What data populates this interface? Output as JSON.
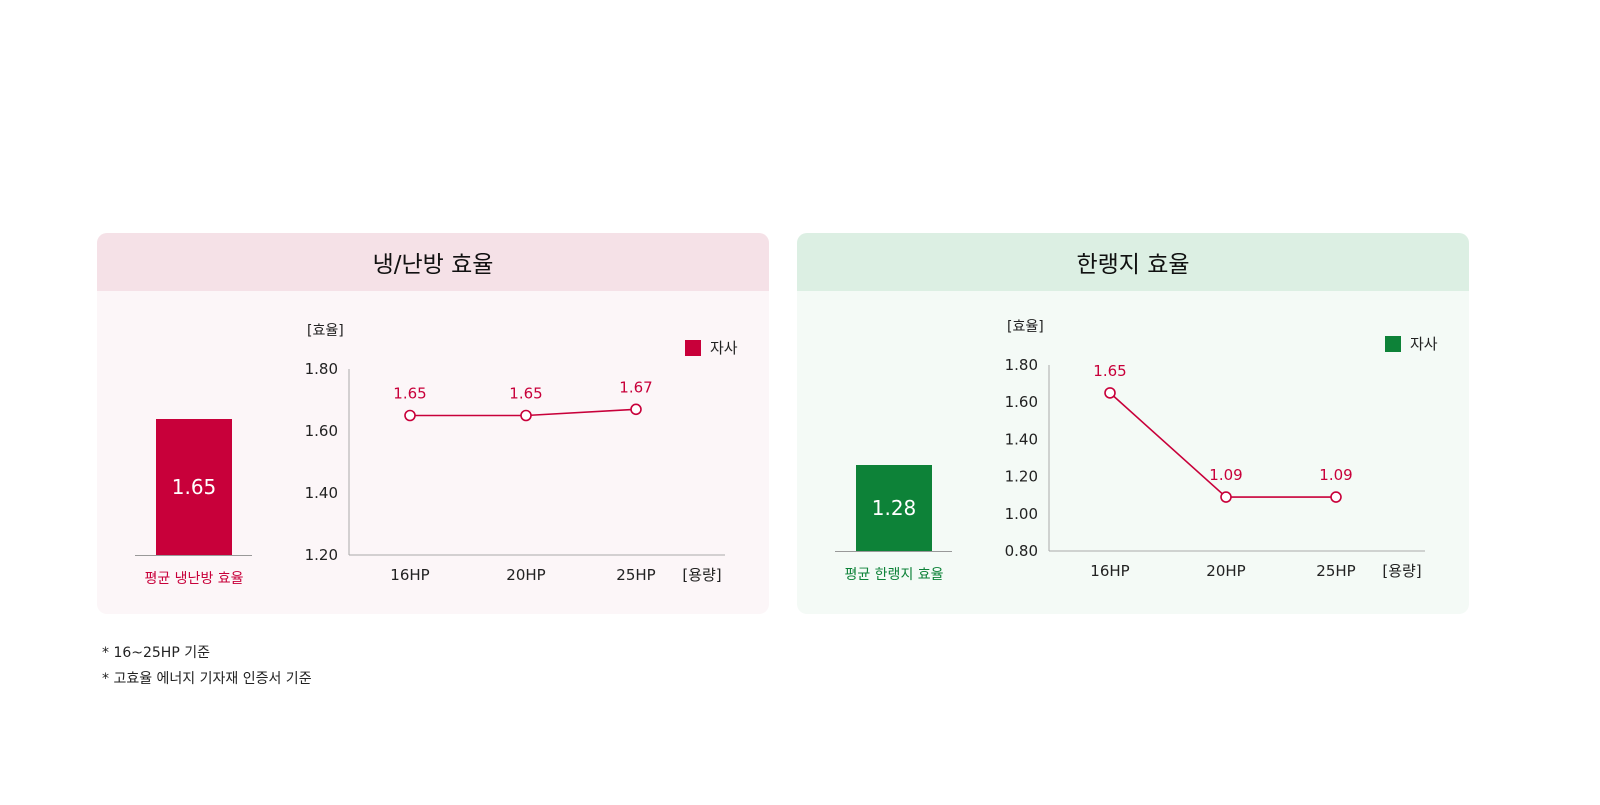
{
  "notes": [
    "* 16~25HP 기준",
    "* 고효율 에너지 기자재 인증서 기준"
  ],
  "chart_data": [
    {
      "type": "line",
      "title": "냉/난방 효율",
      "ylabel": "[효율]",
      "xlabel": "[용량]",
      "categories": [
        "16HP",
        "20HP",
        "25HP"
      ],
      "ylim": [
        1.2,
        1.8
      ],
      "yticks": [
        "1.80",
        "1.60",
        "1.40",
        "1.20"
      ],
      "series": [
        {
          "name": "자사",
          "values": [
            1.65,
            1.65,
            1.67
          ],
          "labels": [
            "1.65",
            "1.65",
            "1.67"
          ]
        }
      ],
      "average": {
        "label": "평균 냉난방 효율",
        "value": "1.65"
      },
      "legend": "top-right",
      "colors": {
        "accent": "#c8003a",
        "line": "#c8003a"
      }
    },
    {
      "type": "line",
      "title": "한랭지 효율",
      "ylabel": "[효율]",
      "xlabel": "[용량]",
      "categories": [
        "16HP",
        "20HP",
        "25HP"
      ],
      "ylim": [
        0.8,
        1.8
      ],
      "yticks": [
        "1.80",
        "1.60",
        "1.40",
        "1.20",
        "1.00",
        "0.80"
      ],
      "series": [
        {
          "name": "자사",
          "values": [
            1.65,
            1.09,
            1.09
          ],
          "labels": [
            "1.65",
            "1.09",
            "1.09"
          ]
        }
      ],
      "average": {
        "label": "평균 한랭지 효율",
        "value": "1.28"
      },
      "legend": "top-right",
      "colors": {
        "accent": "#0d8238",
        "line": "#c8003a"
      }
    }
  ]
}
